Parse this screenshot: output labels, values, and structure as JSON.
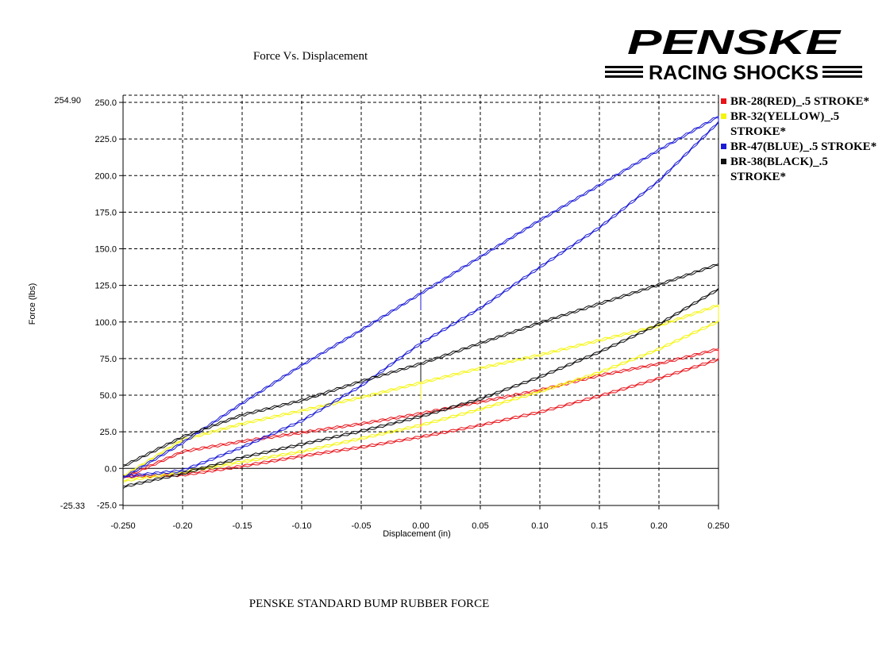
{
  "chart_data": {
    "type": "line",
    "title": "Force Vs. Displacement",
    "xlabel": "Displacement (in)",
    "ylabel": "Force (lbs)",
    "xlim": [
      -0.25,
      0.25
    ],
    "ylim": [
      -25.33,
      254.9
    ],
    "axis_end_labels": {
      "ymax": "254.90",
      "ymin": "-25.33"
    },
    "x_ticks": [
      "-0.250",
      "-0.20",
      "-0.15",
      "-0.10",
      "-0.05",
      "0.00",
      "0.05",
      "0.10",
      "0.15",
      "0.20",
      "0.250"
    ],
    "y_ticks": [
      "-25.0",
      "0.0",
      "25.0",
      "50.0",
      "75.0",
      "100.0",
      "125.0",
      "150.0",
      "175.0",
      "200.0",
      "225.0",
      "250.0"
    ],
    "grid": true,
    "legend_position": "right",
    "series": [
      {
        "name": "BR-28(RED)_.5 STROKE*",
        "color": "#e8141b",
        "loading": [
          [
            -0.25,
            -5
          ],
          [
            -0.2,
            -4
          ],
          [
            -0.15,
            2
          ],
          [
            -0.1,
            9
          ],
          [
            -0.05,
            15
          ],
          [
            0.0,
            22
          ],
          [
            0.05,
            30
          ],
          [
            0.1,
            39
          ],
          [
            0.15,
            50
          ],
          [
            0.2,
            62
          ],
          [
            0.25,
            75
          ]
        ],
        "unloading": [
          [
            -0.25,
            -6
          ],
          [
            -0.2,
            12
          ],
          [
            -0.15,
            19
          ],
          [
            -0.1,
            25
          ],
          [
            -0.05,
            31
          ],
          [
            0.0,
            38
          ],
          [
            0.05,
            46
          ],
          [
            0.1,
            54
          ],
          [
            0.15,
            64
          ],
          [
            0.2,
            72
          ],
          [
            0.25,
            82
          ]
        ]
      },
      {
        "name": "BR-32(YELLOW)_.5 STROKE*",
        "color": "#f5f50a",
        "loading": [
          [
            -0.25,
            -8
          ],
          [
            -0.2,
            -2
          ],
          [
            -0.15,
            5
          ],
          [
            -0.1,
            12
          ],
          [
            -0.05,
            21
          ],
          [
            0.0,
            30
          ],
          [
            0.05,
            41
          ],
          [
            0.1,
            53
          ],
          [
            0.15,
            66
          ],
          [
            0.2,
            82
          ],
          [
            0.25,
            101
          ]
        ],
        "unloading": [
          [
            -0.25,
            -5
          ],
          [
            -0.2,
            20
          ],
          [
            -0.15,
            31
          ],
          [
            -0.1,
            40
          ],
          [
            -0.05,
            49
          ],
          [
            0.0,
            59
          ],
          [
            0.05,
            69
          ],
          [
            0.1,
            78
          ],
          [
            0.15,
            88
          ],
          [
            0.2,
            98
          ],
          [
            0.25,
            112
          ]
        ]
      },
      {
        "name": "BR-47(BLUE)_.5 STROKE*",
        "color": "#1b1bd6",
        "loading": [
          [
            -0.25,
            -5
          ],
          [
            -0.2,
            -1
          ],
          [
            -0.15,
            15
          ],
          [
            -0.1,
            33
          ],
          [
            -0.05,
            57
          ],
          [
            0.0,
            86
          ],
          [
            0.05,
            110
          ],
          [
            0.1,
            138
          ],
          [
            0.15,
            165
          ],
          [
            0.2,
            197
          ],
          [
            0.25,
            237
          ]
        ],
        "unloading": [
          [
            -0.25,
            -6
          ],
          [
            -0.2,
            18
          ],
          [
            -0.15,
            45
          ],
          [
            -0.1,
            71
          ],
          [
            -0.05,
            95
          ],
          [
            0.0,
            120
          ],
          [
            0.05,
            145
          ],
          [
            0.1,
            170
          ],
          [
            0.15,
            194
          ],
          [
            0.2,
            218
          ],
          [
            0.25,
            241
          ]
        ]
      },
      {
        "name": "BR-38(BLACK)_.5 STROKE*",
        "color": "#111111",
        "loading": [
          [
            -0.25,
            -12
          ],
          [
            -0.2,
            -3
          ],
          [
            -0.15,
            8
          ],
          [
            -0.1,
            17
          ],
          [
            -0.05,
            26
          ],
          [
            0.0,
            36
          ],
          [
            0.05,
            48
          ],
          [
            0.1,
            63
          ],
          [
            0.15,
            80
          ],
          [
            0.2,
            99
          ],
          [
            0.25,
            123
          ]
        ],
        "unloading": [
          [
            -0.25,
            2
          ],
          [
            -0.2,
            22
          ],
          [
            -0.15,
            37
          ],
          [
            -0.1,
            47
          ],
          [
            -0.05,
            60
          ],
          [
            0.0,
            72
          ],
          [
            0.05,
            86
          ],
          [
            0.1,
            100
          ],
          [
            0.15,
            113
          ],
          [
            0.2,
            126
          ],
          [
            0.25,
            140
          ]
        ]
      }
    ]
  },
  "footer_caption": "PENSKE STANDARD BUMP RUBBER FORCE",
  "logo": {
    "brand": "PENSKE",
    "subtitle": "RACING SHOCKS"
  }
}
